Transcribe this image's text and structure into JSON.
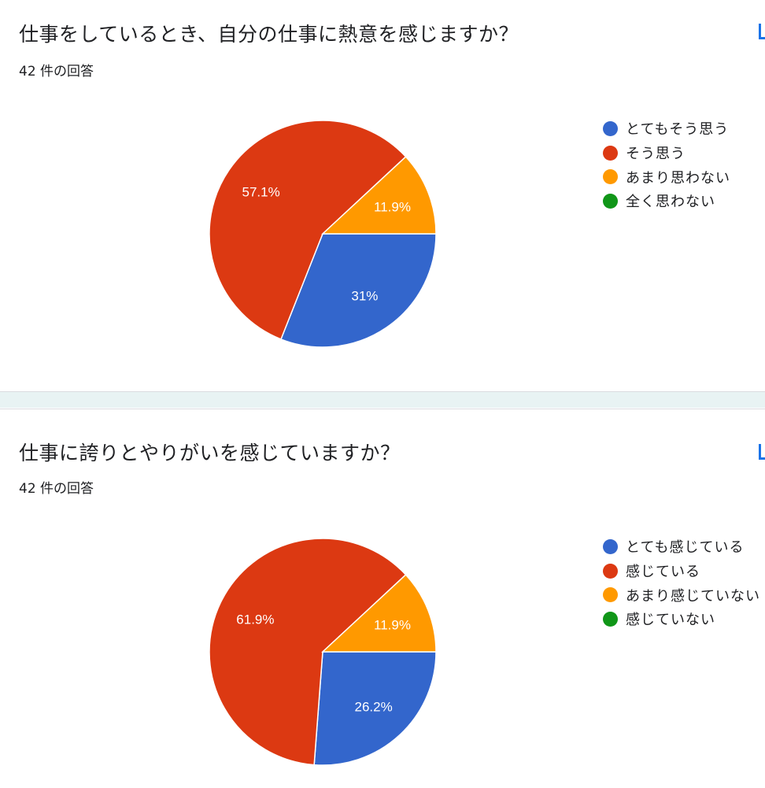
{
  "questions": [
    {
      "title": "仕事をしているとき、自分の仕事に熱意を感じますか？",
      "response_count": "42 件の回答"
    },
    {
      "title": "仕事に誇りとやりがいを感じていますか？",
      "response_count": "42 件の回答"
    }
  ],
  "chart_data": [
    {
      "type": "pie",
      "title": "仕事をしているとき、自分の仕事に熱意を感じますか？",
      "categories": [
        "とてもそう思う",
        "そう思う",
        "あまり思わない",
        "全く思わない"
      ],
      "values": [
        31.0,
        57.1,
        11.9,
        0
      ],
      "labels": [
        "31%",
        "57.1%",
        "11.9%",
        ""
      ],
      "colors": [
        "#3366cc",
        "#dc3912",
        "#ff9900",
        "#109618"
      ],
      "legend_position": "right"
    },
    {
      "type": "pie",
      "title": "仕事に誇りとやりがいを感じていますか？",
      "categories": [
        "とても感じている",
        "感じている",
        "あまり感じていない",
        "感じていない"
      ],
      "values": [
        26.2,
        61.9,
        11.9,
        0
      ],
      "labels": [
        "26.2%",
        "61.9%",
        "11.9%",
        ""
      ],
      "colors": [
        "#3366cc",
        "#dc3912",
        "#ff9900",
        "#109618"
      ],
      "legend_position": "right"
    }
  ]
}
